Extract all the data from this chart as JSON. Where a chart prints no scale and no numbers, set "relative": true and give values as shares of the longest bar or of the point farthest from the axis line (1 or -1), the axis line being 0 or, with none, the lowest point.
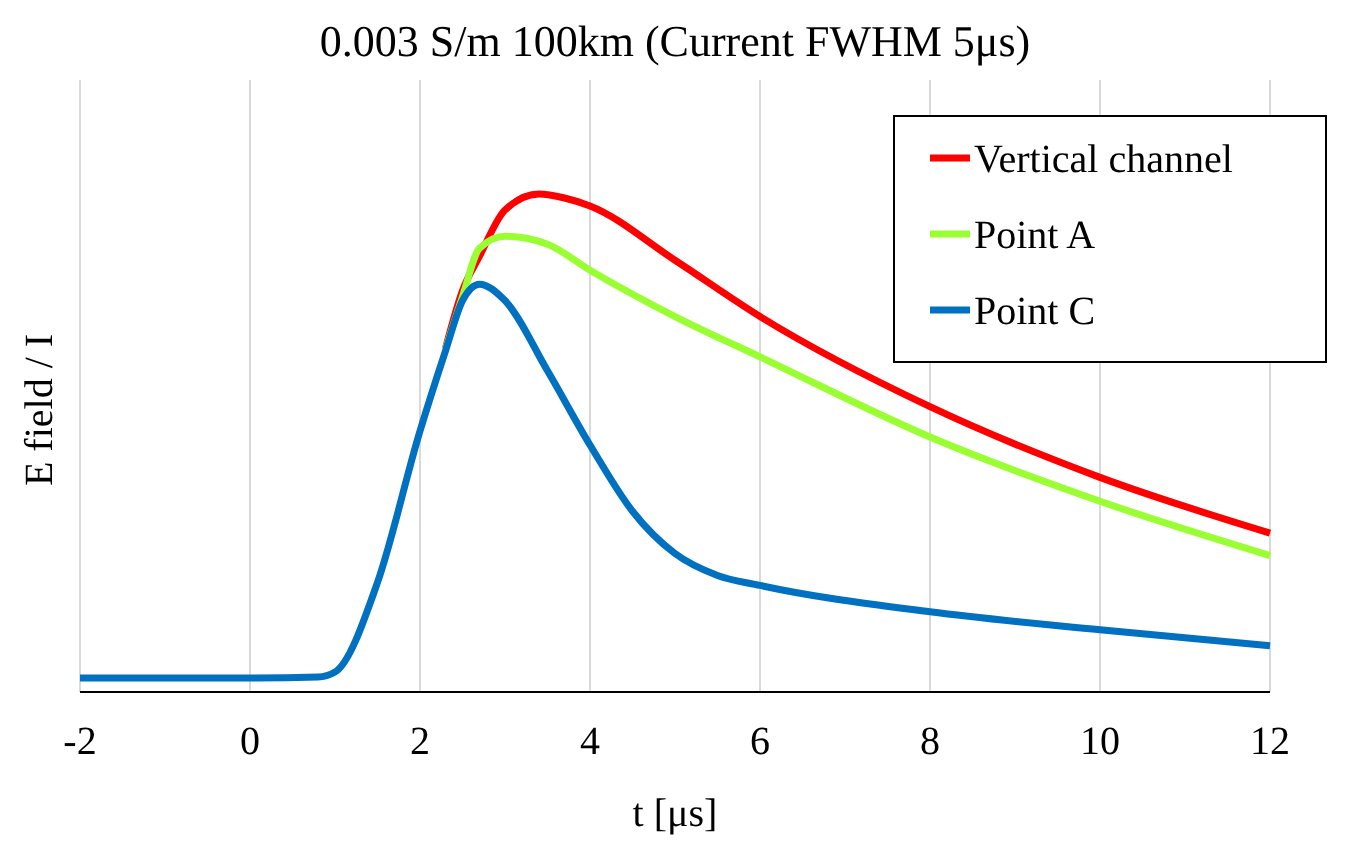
{
  "chart_data": {
    "type": "line",
    "title": "0.003 S/m  100km  (Current FWHM 5μs)",
    "xlabel": "t [μs]",
    "ylabel": "E field / I",
    "relative": true,
    "xlim": [
      -2,
      12
    ],
    "xticks": [
      -2,
      0,
      2,
      4,
      6,
      8,
      10,
      12
    ],
    "grid": "x",
    "legend": "top right",
    "line_style": "solid",
    "series": [
      {
        "name": "Vertical channel",
        "color": "#ff0000",
        "x": [
          2.3,
          2.5,
          2.7,
          3,
          3.4,
          3.7,
          4,
          5,
          6,
          8,
          10,
          12
        ],
        "values": [
          0.69,
          0.806,
          0.875,
          0.968,
          1,
          0.992,
          0.976,
          0.867,
          0.754,
          0.573,
          0.431,
          0.319
        ]
      },
      {
        "name": "Point A",
        "color": "#99ff33",
        "x": [
          2.3,
          2.5,
          2.7,
          3,
          3.5,
          4,
          5,
          6,
          8,
          10,
          12
        ],
        "values": [
          0.688,
          0.794,
          0.891,
          0.915,
          0.899,
          0.847,
          0.754,
          0.673,
          0.512,
          0.383,
          0.274
        ]
      },
      {
        "name": "Point C",
        "color": "#0070c0",
        "x": [
          -2,
          0,
          0.8,
          1,
          1.5,
          2,
          2.3,
          2.5,
          2.7,
          3,
          3.5,
          4,
          4.5,
          5,
          5.5,
          6,
          8,
          10,
          12
        ],
        "values": [
          0.028,
          0.028,
          0.03,
          0.04,
          0.22,
          0.524,
          0.685,
          0.786,
          0.819,
          0.786,
          0.645,
          0.496,
          0.363,
          0.278,
          0.234,
          0.214,
          0.161,
          0.125,
          0.093
        ]
      }
    ]
  }
}
